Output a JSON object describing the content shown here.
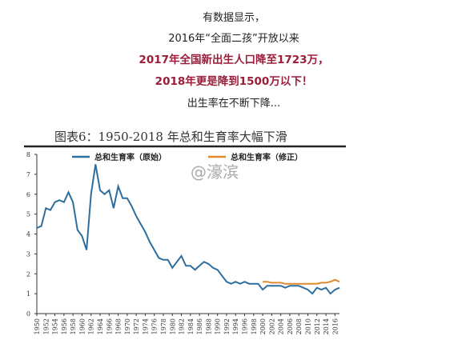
{
  "text_lines": [
    "有数据显示，",
    "2016年“全面二孩”开放以来",
    "2017年全国新出生人口降至1723万，",
    "2018年更是降到1500万以下！",
    "出生率在不断下降..."
  ],
  "chart_data": {
    "type": "line",
    "title": "图表6：1950-2018 年总和生育率大幅下滑",
    "watermark": "@濠滨",
    "x": [
      1950,
      1951,
      1952,
      1953,
      1954,
      1955,
      1956,
      1957,
      1958,
      1959,
      1960,
      1961,
      1962,
      1963,
      1964,
      1965,
      1966,
      1967,
      1968,
      1969,
      1970,
      1971,
      1972,
      1973,
      1974,
      1975,
      1976,
      1977,
      1978,
      1979,
      1980,
      1981,
      1982,
      1983,
      1984,
      1985,
      1986,
      1987,
      1988,
      1989,
      1990,
      1991,
      1992,
      1993,
      1994,
      1995,
      1996,
      1997,
      1998,
      1999,
      2000,
      2001,
      2002,
      2003,
      2004,
      2005,
      2006,
      2007,
      2008,
      2009,
      2010,
      2011,
      2012,
      2013,
      2014,
      2015,
      2016,
      2017
    ],
    "series": [
      {
        "name": "总和生育率（原始）",
        "color": "#2e6e9e",
        "values": [
          4.3,
          4.4,
          5.3,
          5.2,
          5.6,
          5.7,
          5.6,
          6.1,
          5.6,
          4.2,
          3.9,
          3.2,
          6.0,
          7.5,
          6.2,
          6.0,
          6.2,
          5.3,
          6.4,
          5.8,
          5.8,
          5.4,
          4.9,
          4.5,
          4.1,
          3.6,
          3.2,
          2.8,
          2.7,
          2.7,
          2.3,
          2.6,
          2.9,
          2.4,
          2.4,
          2.2,
          2.4,
          2.6,
          2.5,
          2.3,
          2.2,
          1.9,
          1.6,
          1.5,
          1.6,
          1.5,
          1.6,
          1.5,
          1.5,
          1.5,
          1.2,
          1.4,
          1.4,
          1.4,
          1.4,
          1.3,
          1.4,
          1.4,
          1.4,
          1.3,
          1.2,
          1.0,
          1.3,
          1.2,
          1.3,
          1.0,
          1.2,
          1.3
        ]
      },
      {
        "name": "总和生育率（修正）",
        "color": "#e08a2c",
        "values": [
          null,
          null,
          null,
          null,
          null,
          null,
          null,
          null,
          null,
          null,
          null,
          null,
          null,
          null,
          null,
          null,
          null,
          null,
          null,
          null,
          null,
          null,
          null,
          null,
          null,
          null,
          null,
          null,
          null,
          null,
          null,
          null,
          null,
          null,
          null,
          null,
          null,
          null,
          null,
          null,
          null,
          null,
          null,
          null,
          null,
          null,
          null,
          null,
          null,
          null,
          1.6,
          1.6,
          1.55,
          1.55,
          1.55,
          1.5,
          1.5,
          1.5,
          1.5,
          1.5,
          1.5,
          1.5,
          1.5,
          1.55,
          1.55,
          1.6,
          1.7,
          1.6
        ]
      }
    ],
    "xlim": [
      1950,
      2017
    ],
    "xticks": [
      1950,
      1952,
      1954,
      1956,
      1958,
      1960,
      1962,
      1964,
      1966,
      1968,
      1970,
      1972,
      1974,
      1976,
      1978,
      1980,
      1982,
      1984,
      1986,
      1988,
      1990,
      1992,
      1994,
      1996,
      1998,
      2000,
      2002,
      2004,
      2006,
      2008,
      2010,
      2012,
      2014,
      2016
    ],
    "ylim": [
      0,
      8
    ],
    "yticks": [
      0,
      1,
      2,
      3,
      4,
      5,
      6,
      7,
      8
    ]
  }
}
